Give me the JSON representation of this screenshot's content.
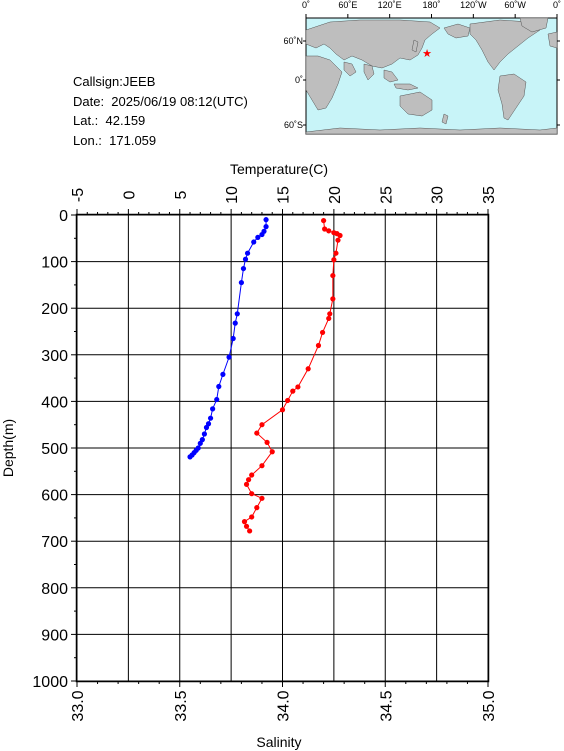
{
  "info": {
    "callsign": "Callsign:JEEB",
    "date": "Date:  2025/06/19 08:12(UTC)",
    "lat": "Lat.:  42.159",
    "lon": "Lon.:  171.059"
  },
  "map": {
    "lon_labels": [
      "0˚",
      "60˚E",
      "120˚E",
      "180˚",
      "120˚W",
      "60˚W",
      "0˚"
    ],
    "lat_labels": [
      "60˚N",
      "0˚",
      "60˚S"
    ],
    "station_marker": "red-star",
    "colors": {
      "ocean": "#c8f4f8",
      "land": "#bebebe",
      "marker": "#ff0000"
    }
  },
  "chart_data": {
    "type": "line",
    "top_axis_label": "Temperature(C)",
    "bottom_axis_label": "Salinity",
    "ylabel": "Depth(m)",
    "temperature_range": [
      -5,
      35
    ],
    "temperature_ticks": [
      "-5",
      "0",
      "5",
      "10",
      "15",
      "20",
      "25",
      "30",
      "35"
    ],
    "salinity_range": [
      33.0,
      35.0
    ],
    "salinity_ticks": [
      "33.0",
      "33.5",
      "34.0",
      "34.5",
      "35.0"
    ],
    "depth_range": [
      0,
      1000
    ],
    "depth_ticks": [
      "0",
      "100",
      "200",
      "300",
      "400",
      "500",
      "600",
      "700",
      "800",
      "900",
      "1000"
    ],
    "grid": true,
    "series": [
      {
        "variable": "temperature",
        "color": "#ff0000",
        "axis": "top",
        "points": [
          [
            19.0,
            12
          ],
          [
            19.1,
            30
          ],
          [
            19.5,
            34
          ],
          [
            20.0,
            38
          ],
          [
            20.3,
            40
          ],
          [
            20.6,
            44
          ],
          [
            20.4,
            54
          ],
          [
            20.2,
            82
          ],
          [
            20.0,
            96
          ],
          [
            19.9,
            130
          ],
          [
            19.9,
            180
          ],
          [
            19.6,
            212
          ],
          [
            19.5,
            222
          ],
          [
            18.9,
            252
          ],
          [
            18.5,
            280
          ],
          [
            17.5,
            330
          ],
          [
            16.5,
            369
          ],
          [
            16.0,
            378
          ],
          [
            15.5,
            398
          ],
          [
            15.0,
            418
          ],
          [
            13.0,
            450
          ],
          [
            12.5,
            468
          ],
          [
            13.5,
            488
          ],
          [
            14.0,
            508
          ],
          [
            13.0,
            538
          ],
          [
            12.0,
            558
          ],
          [
            11.7,
            568
          ],
          [
            11.5,
            578
          ],
          [
            12.0,
            598
          ],
          [
            13.0,
            608
          ],
          [
            12.5,
            628
          ],
          [
            12.0,
            648
          ],
          [
            11.3,
            658
          ],
          [
            11.5,
            668
          ],
          [
            11.8,
            678
          ]
        ]
      },
      {
        "variable": "salinity",
        "color": "#0000ff",
        "axis": "bottom",
        "points": [
          [
            33.92,
            10
          ],
          [
            33.92,
            25
          ],
          [
            33.91,
            35
          ],
          [
            33.9,
            42
          ],
          [
            33.88,
            48
          ],
          [
            33.86,
            58
          ],
          [
            33.83,
            82
          ],
          [
            33.82,
            95
          ],
          [
            33.81,
            115
          ],
          [
            33.8,
            145
          ],
          [
            33.78,
            212
          ],
          [
            33.77,
            232
          ],
          [
            33.76,
            265
          ],
          [
            33.74,
            305
          ],
          [
            33.71,
            342
          ],
          [
            33.69,
            368
          ],
          [
            33.68,
            396
          ],
          [
            33.66,
            416
          ],
          [
            33.65,
            436
          ],
          [
            33.64,
            448
          ],
          [
            33.63,
            456
          ],
          [
            33.62,
            470
          ],
          [
            33.61,
            482
          ],
          [
            33.6,
            490
          ],
          [
            33.59,
            500
          ],
          [
            33.58,
            505
          ],
          [
            33.57,
            510
          ],
          [
            33.56,
            515
          ],
          [
            33.55,
            519
          ]
        ]
      }
    ]
  }
}
